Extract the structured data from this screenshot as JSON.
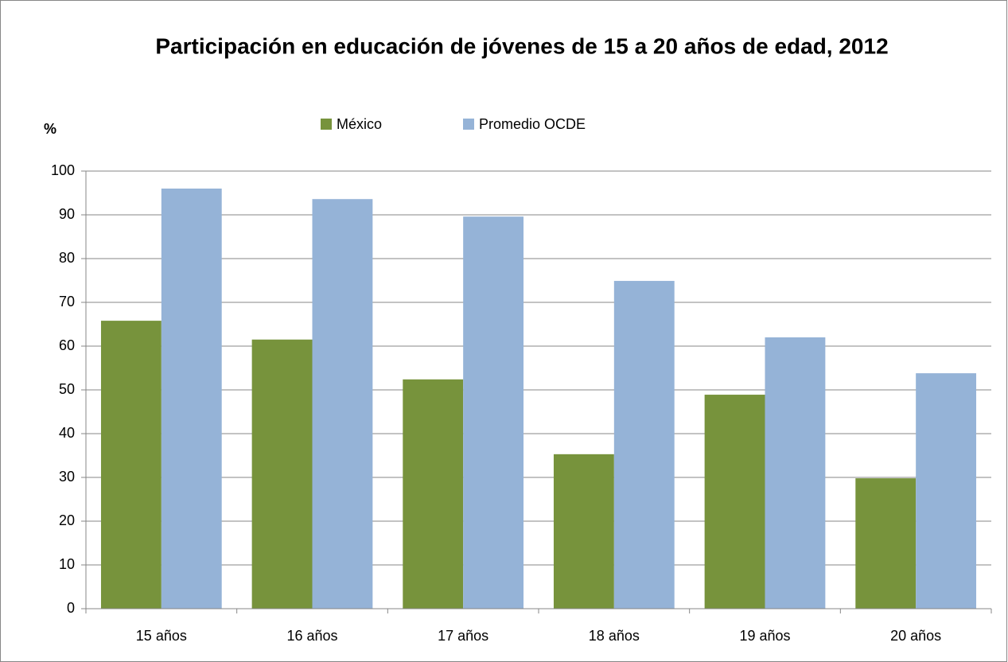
{
  "chart_data": {
    "type": "bar",
    "title": "Participación en educación de jóvenes de 15 a 20 años de edad, 2012",
    "y_label": "%",
    "categories": [
      "15 años",
      "16 años",
      "17 años",
      "18 años",
      "19 años",
      "20 años"
    ],
    "series": [
      {
        "name": "México",
        "color": "#77933c",
        "values": [
          65.8,
          61.5,
          52.4,
          35.3,
          48.9,
          29.8
        ]
      },
      {
        "name": "Promedio OCDE",
        "color": "#95b3d7",
        "values": [
          96,
          93.6,
          89.6,
          74.9,
          62,
          53.8
        ]
      }
    ],
    "ylim": [
      0,
      100
    ],
    "yticks": [
      0,
      10,
      20,
      30,
      40,
      50,
      60,
      70,
      80,
      90,
      100
    ],
    "grid": true,
    "legend": "top"
  }
}
